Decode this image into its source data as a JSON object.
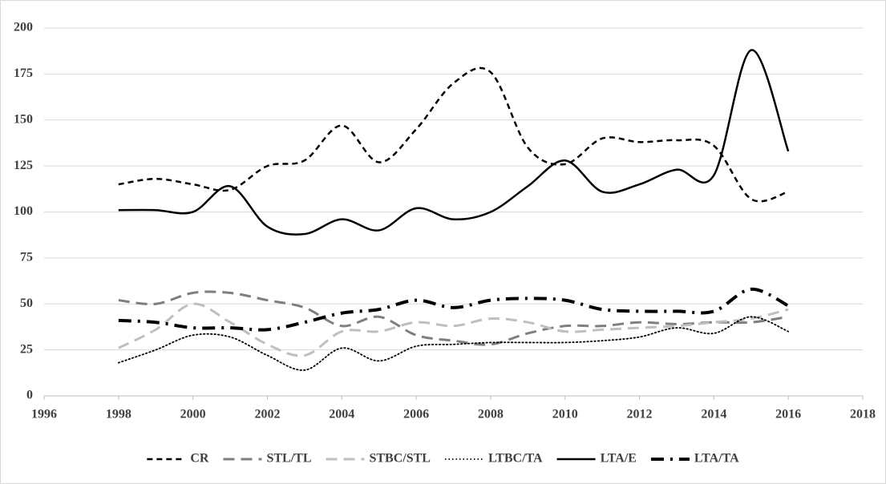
{
  "chart_data": {
    "type": "line",
    "x": [
      1998,
      1999,
      2000,
      2001,
      2002,
      2003,
      2004,
      2005,
      2006,
      2007,
      2008,
      2009,
      2010,
      2011,
      2012,
      2013,
      2014,
      2015,
      2016
    ],
    "xlim": [
      1996,
      2018
    ],
    "xticks": [
      1996,
      1998,
      2000,
      2002,
      2004,
      2006,
      2008,
      2010,
      2012,
      2014,
      2016,
      2018
    ],
    "ylim": [
      0,
      200
    ],
    "yticks": [
      0,
      25,
      50,
      75,
      100,
      125,
      150,
      175,
      200
    ],
    "grid": true,
    "legend": "bottom",
    "series": [
      {
        "name": "CR",
        "color": "#000000",
        "line_style": "dashed",
        "values": [
          115,
          118,
          115,
          112,
          125,
          128,
          147,
          127,
          145,
          170,
          176,
          135,
          126,
          140,
          138,
          139,
          136,
          107,
          111
        ]
      },
      {
        "name": "STL/TL",
        "color": "#7f7f7f",
        "line_style": "long-dashed",
        "values": [
          52,
          50,
          56,
          56,
          52,
          48,
          38,
          43,
          33,
          30,
          28,
          34,
          38,
          38,
          40,
          39,
          40,
          40,
          43
        ]
      },
      {
        "name": "STBC/STL",
        "color": "#bfbfbf",
        "line_style": "long-dashed",
        "values": [
          26,
          36,
          50,
          40,
          28,
          22,
          35,
          35,
          40,
          38,
          42,
          40,
          35,
          36,
          37,
          38,
          40,
          42,
          47
        ]
      },
      {
        "name": "LTBC/TA",
        "color": "#000000",
        "line_style": "dotted",
        "values": [
          18,
          25,
          33,
          32,
          22,
          14,
          26,
          19,
          27,
          28,
          29,
          29,
          29,
          30,
          32,
          37,
          34,
          43,
          35
        ]
      },
      {
        "name": "LTA/E",
        "color": "#000000",
        "line_style": "solid",
        "values": [
          101,
          101,
          100,
          114,
          92,
          88,
          96,
          90,
          102,
          96,
          100,
          114,
          128,
          111,
          115,
          123,
          120,
          188,
          133
        ]
      },
      {
        "name": "LTA/TA",
        "color": "#000000",
        "line_style": "dash-dot",
        "values": [
          41,
          40,
          37,
          37,
          36,
          40,
          45,
          47,
          52,
          48,
          52,
          53,
          52,
          47,
          46,
          46,
          46,
          58,
          49
        ]
      }
    ]
  }
}
